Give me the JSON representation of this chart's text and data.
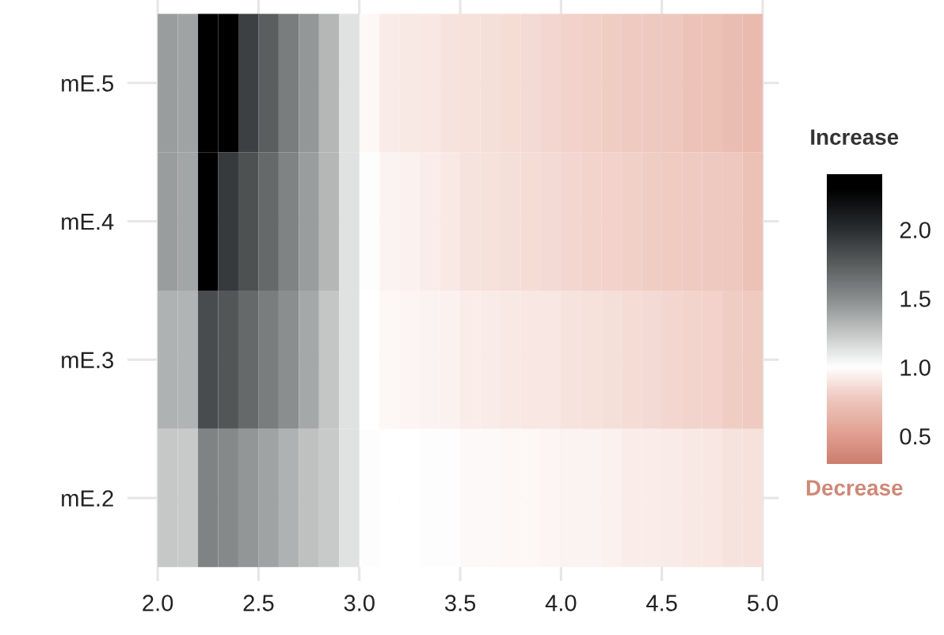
{
  "chart_data": {
    "type": "heatmap",
    "x": [
      2.05,
      2.15,
      2.25,
      2.35,
      2.45,
      2.55,
      2.65,
      2.75,
      2.85,
      2.95,
      3.05,
      3.15,
      3.25,
      3.35,
      3.45,
      3.55,
      3.65,
      3.75,
      3.85,
      3.95,
      4.05,
      4.15,
      4.25,
      4.35,
      4.45,
      4.55,
      4.65,
      4.75,
      4.85,
      4.95
    ],
    "y_categories": [
      "mE.5",
      "mE.4",
      "mE.3",
      "mE.2"
    ],
    "cells": [
      [
        1.43,
        1.4,
        2.3,
        2.3,
        1.9,
        1.75,
        1.58,
        1.45,
        1.31,
        1.13,
        0.97,
        0.92,
        0.91,
        0.9,
        0.89,
        0.88,
        0.87,
        0.86,
        0.85,
        0.84,
        0.82,
        0.81,
        0.8,
        0.78,
        0.77,
        0.76,
        0.74,
        0.72,
        0.7,
        0.68
      ],
      [
        1.43,
        1.39,
        2.3,
        1.94,
        1.81,
        1.69,
        1.55,
        1.43,
        1.31,
        1.13,
        0.99,
        0.95,
        0.94,
        0.93,
        0.91,
        0.89,
        0.88,
        0.87,
        0.86,
        0.85,
        0.84,
        0.83,
        0.82,
        0.81,
        0.8,
        0.79,
        0.78,
        0.77,
        0.76,
        0.72
      ],
      [
        1.34,
        1.33,
        1.84,
        1.79,
        1.69,
        1.58,
        1.49,
        1.38,
        1.25,
        1.13,
        1.0,
        0.97,
        0.96,
        0.95,
        0.94,
        0.93,
        0.92,
        0.91,
        0.9,
        0.9,
        0.89,
        0.88,
        0.87,
        0.86,
        0.85,
        0.84,
        0.83,
        0.82,
        0.8,
        0.78
      ],
      [
        1.24,
        1.23,
        1.55,
        1.52,
        1.46,
        1.4,
        1.34,
        1.27,
        1.23,
        1.13,
        1.01,
        1.0,
        1.0,
        0.99,
        0.99,
        0.98,
        0.98,
        0.97,
        0.97,
        0.96,
        0.95,
        0.95,
        0.94,
        0.93,
        0.93,
        0.92,
        0.91,
        0.9,
        0.89,
        0.88
      ]
    ],
    "xlim": [
      1.85,
      5.08
    ],
    "xticks": [
      {
        "value": 2.0,
        "label": "2.0"
      },
      {
        "value": 2.5,
        "label": "2.5"
      },
      {
        "value": 3.0,
        "label": "3.0"
      },
      {
        "value": 3.5,
        "label": "3.5"
      },
      {
        "value": 4.0,
        "label": "4.0"
      },
      {
        "value": 4.5,
        "label": "4.5"
      },
      {
        "value": 5.0,
        "label": "5.0"
      }
    ],
    "clim": [
      0.3,
      2.4
    ],
    "cticks": [
      {
        "value": 0.5,
        "label": "0.5"
      },
      {
        "value": 1.0,
        "label": "1.0"
      },
      {
        "value": 1.5,
        "label": "1.5"
      },
      {
        "value": 2.0,
        "label": "2.0"
      }
    ],
    "clabel": "Increase",
    "annotations": [
      "Decrease"
    ],
    "grid": true
  }
}
